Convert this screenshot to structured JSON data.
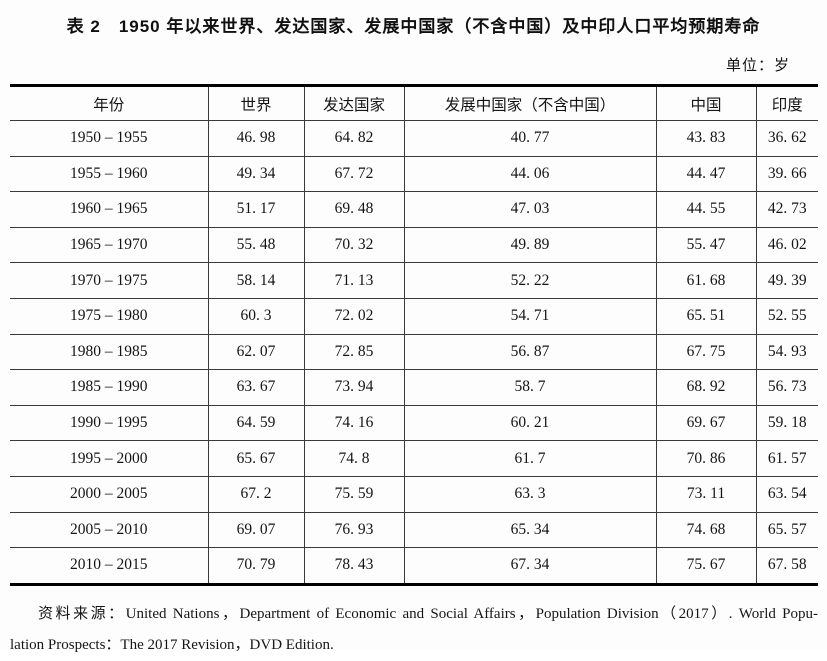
{
  "title": "表 2　1950 年以来世界、发达国家、发展中国家（不含中国）及中印人口平均预期寿命",
  "unit": "单位：岁",
  "table": {
    "columns": [
      "年份",
      "世界",
      "发达国家",
      "发展中国家（不含中国）",
      "中国",
      "印度"
    ],
    "rows": [
      [
        "1950 – 1955",
        "46. 98",
        "64. 82",
        "40. 77",
        "43. 83",
        "36. 62"
      ],
      [
        "1955 – 1960",
        "49. 34",
        "67. 72",
        "44. 06",
        "44. 47",
        "39. 66"
      ],
      [
        "1960 – 1965",
        "51. 17",
        "69. 48",
        "47. 03",
        "44. 55",
        "42. 73"
      ],
      [
        "1965 – 1970",
        "55. 48",
        "70. 32",
        "49. 89",
        "55. 47",
        "46. 02"
      ],
      [
        "1970 – 1975",
        "58. 14",
        "71. 13",
        "52. 22",
        "61. 68",
        "49. 39"
      ],
      [
        "1975 – 1980",
        "60. 3",
        "72. 02",
        "54. 71",
        "65. 51",
        "52. 55"
      ],
      [
        "1980 – 1985",
        "62. 07",
        "72. 85",
        "56. 87",
        "67. 75",
        "54. 93"
      ],
      [
        "1985 – 1990",
        "63. 67",
        "73. 94",
        "58. 7",
        "68. 92",
        "56. 73"
      ],
      [
        "1990 – 1995",
        "64. 59",
        "74. 16",
        "60. 21",
        "69. 67",
        "59. 18"
      ],
      [
        "1995 – 2000",
        "65. 67",
        "74. 8",
        "61. 7",
        "70. 86",
        "61. 57"
      ],
      [
        "2000 – 2005",
        "67. 2",
        "75. 59",
        "63. 3",
        "73. 11",
        "63. 54"
      ],
      [
        "2005 – 2010",
        "69. 07",
        "76. 93",
        "65. 34",
        "74. 68",
        "65. 57"
      ],
      [
        "2010 – 2015",
        "70. 79",
        "78. 43",
        "67. 34",
        "75. 67",
        "67. 58"
      ]
    ]
  },
  "source": {
    "line1": "资料来源：United Nations，Department of Economic and Social Affairs，Population Division（2017）. World Popu-",
    "line2": "lation Prospects：The 2017 Revision，DVD Edition."
  },
  "chart_data": {
    "type": "table",
    "title": "1950 年以来世界、发达国家、发展中国家（不含中国）及中印人口平均预期寿命",
    "unit": "岁",
    "categories": [
      "1950–1955",
      "1955–1960",
      "1960–1965",
      "1965–1970",
      "1970–1975",
      "1975–1980",
      "1980–1985",
      "1985–1990",
      "1990–1995",
      "1995–2000",
      "2000–2005",
      "2005–2010",
      "2010–2015"
    ],
    "series": [
      {
        "name": "世界",
        "values": [
          46.98,
          49.34,
          51.17,
          55.48,
          58.14,
          60.3,
          62.07,
          63.67,
          64.59,
          65.67,
          67.2,
          69.07,
          70.79
        ]
      },
      {
        "name": "发达国家",
        "values": [
          64.82,
          67.72,
          69.48,
          70.32,
          71.13,
          72.02,
          72.85,
          73.94,
          74.16,
          74.8,
          75.59,
          76.93,
          78.43
        ]
      },
      {
        "name": "发展中国家（不含中国）",
        "values": [
          40.77,
          44.06,
          47.03,
          49.89,
          52.22,
          54.71,
          56.87,
          58.7,
          60.21,
          61.7,
          63.3,
          65.34,
          67.34
        ]
      },
      {
        "name": "中国",
        "values": [
          43.83,
          44.47,
          44.55,
          55.47,
          61.68,
          65.51,
          67.75,
          68.92,
          69.67,
          70.86,
          73.11,
          74.68,
          75.67
        ]
      },
      {
        "name": "印度",
        "values": [
          36.62,
          39.66,
          42.73,
          46.02,
          49.39,
          52.55,
          54.93,
          56.73,
          59.18,
          61.57,
          63.54,
          65.57,
          67.58
        ]
      }
    ]
  }
}
